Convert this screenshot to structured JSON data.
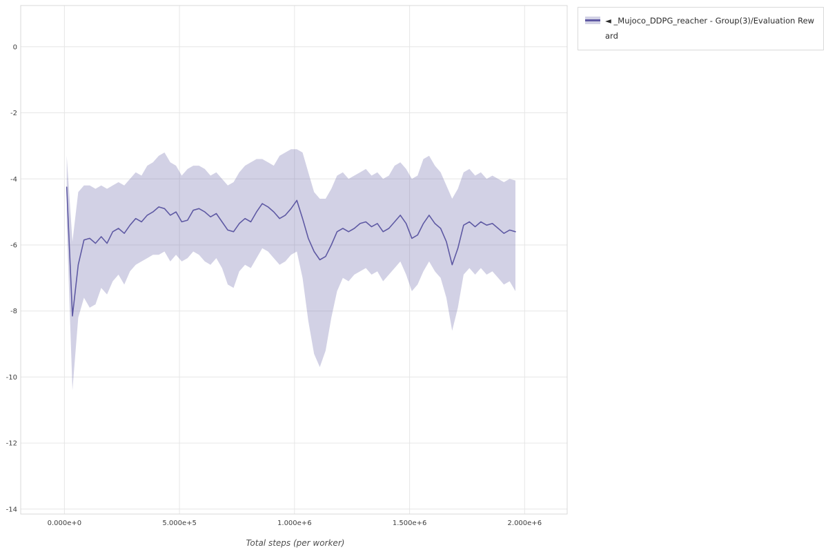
{
  "legend": {
    "toggle_icon": "◄",
    "label": "_Mujoco_DDPG_reacher - Group(3)/Evaluation Reward"
  },
  "chart_data": {
    "type": "line",
    "title": "",
    "xlabel": "Total steps (per worker)",
    "ylabel": "",
    "grid": true,
    "legend_position": "top-right-outside",
    "xlim": [
      -190000,
      2185000
    ],
    "ylim": [
      -14.15,
      1.25
    ],
    "x_ticks": {
      "values": [
        0,
        500000,
        1000000,
        1500000,
        2000000
      ],
      "labels": [
        "0.000e+0",
        "5.000e+5",
        "1.000e+6",
        "1.500e+6",
        "2.000e+6"
      ]
    },
    "y_ticks": {
      "values": [
        0,
        -2,
        -4,
        -6,
        -8,
        -10,
        -12,
        -14
      ],
      "labels": [
        "0",
        "-2",
        "-4",
        "-6",
        "-8",
        "-10",
        "-12",
        "-14"
      ]
    },
    "colors": {
      "grid": "#e6e6e6",
      "frame": "#d9d9d9",
      "tick_text": "#3d3d3d",
      "axis_title_text": "#4d4d4d"
    },
    "series": [
      {
        "name": "_Mujoco_DDPG_reacher - Group(3)/Evaluation Reward",
        "line_color": "#5e59a3",
        "band_color": "rgba(94,89,163,0.28)",
        "x": [
          10000,
          35000,
          60000,
          85000,
          110000,
          135000,
          160000,
          185000,
          210000,
          235000,
          260000,
          285000,
          310000,
          335000,
          360000,
          385000,
          410000,
          435000,
          460000,
          485000,
          510000,
          535000,
          560000,
          585000,
          610000,
          635000,
          660000,
          685000,
          710000,
          735000,
          760000,
          785000,
          810000,
          835000,
          860000,
          885000,
          910000,
          935000,
          960000,
          985000,
          1010000,
          1035000,
          1060000,
          1085000,
          1110000,
          1135000,
          1160000,
          1185000,
          1210000,
          1235000,
          1260000,
          1285000,
          1310000,
          1335000,
          1360000,
          1385000,
          1410000,
          1435000,
          1460000,
          1485000,
          1510000,
          1535000,
          1560000,
          1585000,
          1610000,
          1635000,
          1660000,
          1685000,
          1710000,
          1735000,
          1760000,
          1785000,
          1810000,
          1835000,
          1860000,
          1885000,
          1910000,
          1935000,
          1960000
        ],
        "mean": [
          -4.25,
          -8.15,
          -6.6,
          -5.85,
          -5.8,
          -5.95,
          -5.75,
          -5.95,
          -5.6,
          -5.5,
          -5.65,
          -5.4,
          -5.2,
          -5.3,
          -5.1,
          -5.0,
          -4.85,
          -4.9,
          -5.1,
          -5.0,
          -5.3,
          -5.25,
          -4.95,
          -4.9,
          -5.0,
          -5.15,
          -5.05,
          -5.3,
          -5.55,
          -5.6,
          -5.35,
          -5.2,
          -5.3,
          -5.0,
          -4.75,
          -4.85,
          -5.0,
          -5.2,
          -5.1,
          -4.9,
          -4.65,
          -5.2,
          -5.8,
          -6.2,
          -6.45,
          -6.35,
          -6.0,
          -5.6,
          -5.5,
          -5.6,
          -5.5,
          -5.35,
          -5.3,
          -5.45,
          -5.35,
          -5.6,
          -5.5,
          -5.3,
          -5.1,
          -5.35,
          -5.8,
          -5.7,
          -5.35,
          -5.1,
          -5.35,
          -5.5,
          -5.9,
          -6.6,
          -6.1,
          -5.4,
          -5.3,
          -5.45,
          -5.3,
          -5.4,
          -5.35,
          -5.5,
          -5.65,
          -5.55,
          -5.6
        ],
        "upper": [
          -3.3,
          -5.9,
          -4.4,
          -4.2,
          -4.2,
          -4.3,
          -4.2,
          -4.3,
          -4.2,
          -4.1,
          -4.2,
          -4.0,
          -3.8,
          -3.9,
          -3.6,
          -3.5,
          -3.3,
          -3.2,
          -3.5,
          -3.6,
          -3.9,
          -3.7,
          -3.6,
          -3.6,
          -3.7,
          -3.9,
          -3.8,
          -4.0,
          -4.2,
          -4.1,
          -3.8,
          -3.6,
          -3.5,
          -3.4,
          -3.4,
          -3.5,
          -3.6,
          -3.3,
          -3.2,
          -3.1,
          -3.1,
          -3.2,
          -3.8,
          -4.4,
          -4.6,
          -4.6,
          -4.3,
          -3.9,
          -3.8,
          -4.0,
          -3.9,
          -3.8,
          -3.7,
          -3.9,
          -3.8,
          -4.0,
          -3.9,
          -3.6,
          -3.5,
          -3.7,
          -4.0,
          -3.9,
          -3.4,
          -3.3,
          -3.6,
          -3.8,
          -4.2,
          -4.6,
          -4.3,
          -3.8,
          -3.7,
          -3.9,
          -3.8,
          -4.0,
          -3.9,
          -4.0,
          -4.1,
          -4.0,
          -4.05
        ],
        "lower": [
          -5.3,
          -10.4,
          -8.2,
          -7.6,
          -7.9,
          -7.8,
          -7.3,
          -7.5,
          -7.1,
          -6.9,
          -7.2,
          -6.8,
          -6.6,
          -6.5,
          -6.4,
          -6.3,
          -6.3,
          -6.2,
          -6.5,
          -6.3,
          -6.5,
          -6.4,
          -6.2,
          -6.3,
          -6.5,
          -6.6,
          -6.4,
          -6.7,
          -7.2,
          -7.3,
          -6.8,
          -6.6,
          -6.7,
          -6.4,
          -6.1,
          -6.2,
          -6.4,
          -6.6,
          -6.5,
          -6.3,
          -6.2,
          -7.0,
          -8.3,
          -9.3,
          -9.7,
          -9.2,
          -8.2,
          -7.4,
          -7.0,
          -7.1,
          -6.9,
          -6.8,
          -6.7,
          -6.9,
          -6.8,
          -7.1,
          -6.9,
          -6.7,
          -6.5,
          -6.9,
          -7.4,
          -7.2,
          -6.8,
          -6.5,
          -6.8,
          -7.0,
          -7.6,
          -8.6,
          -7.9,
          -6.9,
          -6.7,
          -6.9,
          -6.7,
          -6.9,
          -6.8,
          -7.0,
          -7.2,
          -7.1,
          -7.4
        ]
      }
    ]
  }
}
